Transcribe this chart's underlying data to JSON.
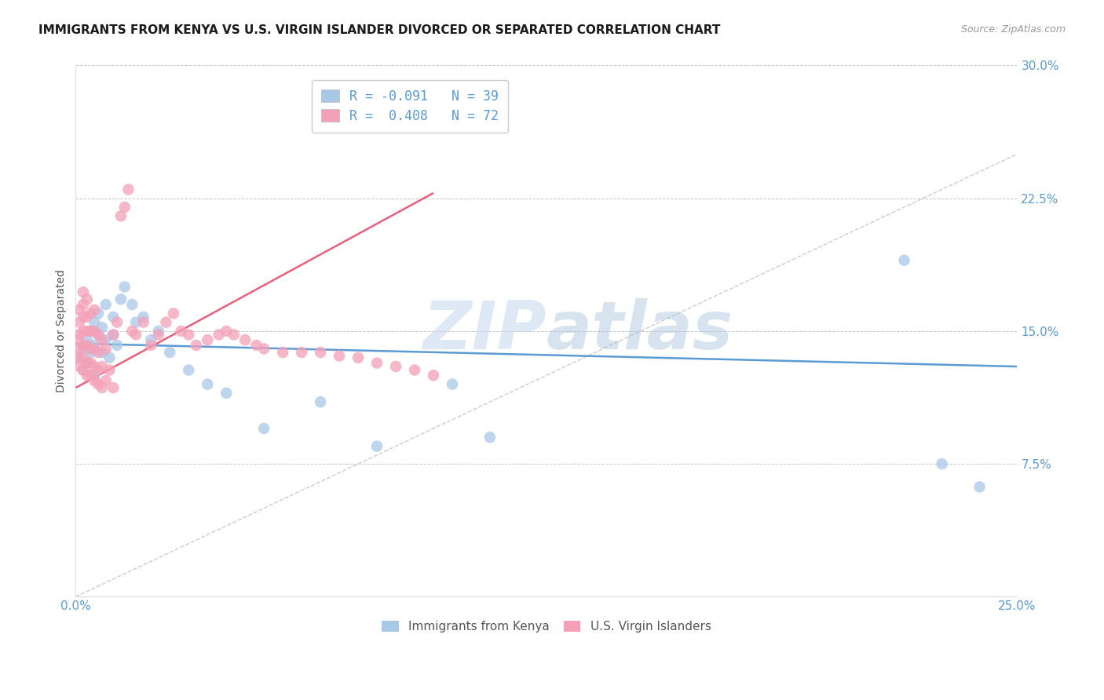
{
  "title": "IMMIGRANTS FROM KENYA VS U.S. VIRGIN ISLANDER DIVORCED OR SEPARATED CORRELATION CHART",
  "source": "Source: ZipAtlas.com",
  "ylabel": "Divorced or Separated",
  "legend_entries": [
    {
      "label": "R = -0.091   N = 39",
      "color": "#a8c8e8"
    },
    {
      "label": "R =  0.408   N = 72",
      "color": "#f4a0b8"
    }
  ],
  "legend_label1": "Immigrants from Kenya",
  "legend_label2": "U.S. Virgin Islanders",
  "legend_color1": "#a8c8e8",
  "legend_color2": "#f4a0b8",
  "blue_scatter_x": [
    0.001,
    0.002,
    0.002,
    0.003,
    0.003,
    0.004,
    0.004,
    0.005,
    0.005,
    0.005,
    0.006,
    0.006,
    0.007,
    0.007,
    0.008,
    0.008,
    0.009,
    0.01,
    0.01,
    0.011,
    0.012,
    0.013,
    0.015,
    0.016,
    0.018,
    0.02,
    0.022,
    0.025,
    0.03,
    0.035,
    0.04,
    0.05,
    0.065,
    0.08,
    0.1,
    0.11,
    0.22,
    0.23,
    0.24
  ],
  "blue_scatter_y": [
    0.135,
    0.14,
    0.128,
    0.145,
    0.132,
    0.138,
    0.15,
    0.142,
    0.155,
    0.125,
    0.148,
    0.16,
    0.138,
    0.152,
    0.165,
    0.145,
    0.135,
    0.158,
    0.148,
    0.142,
    0.168,
    0.175,
    0.165,
    0.155,
    0.158,
    0.145,
    0.15,
    0.138,
    0.128,
    0.12,
    0.115,
    0.095,
    0.11,
    0.085,
    0.12,
    0.09,
    0.19,
    0.075,
    0.062
  ],
  "pink_scatter_x": [
    0.0005,
    0.0005,
    0.001,
    0.001,
    0.001,
    0.001,
    0.001,
    0.002,
    0.002,
    0.002,
    0.002,
    0.002,
    0.002,
    0.002,
    0.003,
    0.003,
    0.003,
    0.003,
    0.003,
    0.003,
    0.004,
    0.004,
    0.004,
    0.004,
    0.004,
    0.005,
    0.005,
    0.005,
    0.005,
    0.005,
    0.006,
    0.006,
    0.006,
    0.006,
    0.007,
    0.007,
    0.007,
    0.008,
    0.008,
    0.009,
    0.01,
    0.01,
    0.011,
    0.012,
    0.013,
    0.014,
    0.015,
    0.016,
    0.018,
    0.02,
    0.022,
    0.024,
    0.026,
    0.028,
    0.03,
    0.032,
    0.035,
    0.038,
    0.04,
    0.042,
    0.045,
    0.048,
    0.05,
    0.055,
    0.06,
    0.065,
    0.07,
    0.075,
    0.08,
    0.085,
    0.09,
    0.095
  ],
  "pink_scatter_y": [
    0.135,
    0.145,
    0.13,
    0.14,
    0.148,
    0.155,
    0.162,
    0.128,
    0.135,
    0.142,
    0.15,
    0.158,
    0.165,
    0.172,
    0.125,
    0.132,
    0.142,
    0.15,
    0.158,
    0.168,
    0.125,
    0.132,
    0.14,
    0.15,
    0.16,
    0.122,
    0.13,
    0.14,
    0.15,
    0.162,
    0.12,
    0.128,
    0.138,
    0.148,
    0.118,
    0.13,
    0.145,
    0.122,
    0.14,
    0.128,
    0.118,
    0.148,
    0.155,
    0.215,
    0.22,
    0.23,
    0.15,
    0.148,
    0.155,
    0.142,
    0.148,
    0.155,
    0.16,
    0.15,
    0.148,
    0.142,
    0.145,
    0.148,
    0.15,
    0.148,
    0.145,
    0.142,
    0.14,
    0.138,
    0.138,
    0.138,
    0.136,
    0.135,
    0.132,
    0.13,
    0.128,
    0.125
  ],
  "blue_line_x": [
    0.0,
    0.25
  ],
  "blue_line_y": [
    0.143,
    0.13
  ],
  "pink_line_x": [
    0.0,
    0.095
  ],
  "pink_line_y": [
    0.118,
    0.228
  ],
  "diagonal_line_x": [
    0.0,
    0.25
  ],
  "diagonal_line_y": [
    0.0,
    0.25
  ],
  "watermark_zip": "ZIP",
  "watermark_atlas": "atlas",
  "axis_tick_color": "#5b9bd5",
  "grid_color": "#c8c8c8",
  "title_fontsize": 11,
  "source_fontsize": 9,
  "tick_fontsize": 11,
  "ytick_right": true,
  "x_min": 0.0,
  "x_max": 0.25,
  "y_min": 0.0,
  "y_max": 0.3,
  "y_ticks": [
    0.075,
    0.15,
    0.225,
    0.3
  ],
  "y_tick_labels": [
    "7.5%",
    "15.0%",
    "22.5%",
    "30.0%"
  ],
  "x_ticks": [
    0.0,
    0.25
  ],
  "x_tick_labels": [
    "0.0%",
    "25.0%"
  ]
}
